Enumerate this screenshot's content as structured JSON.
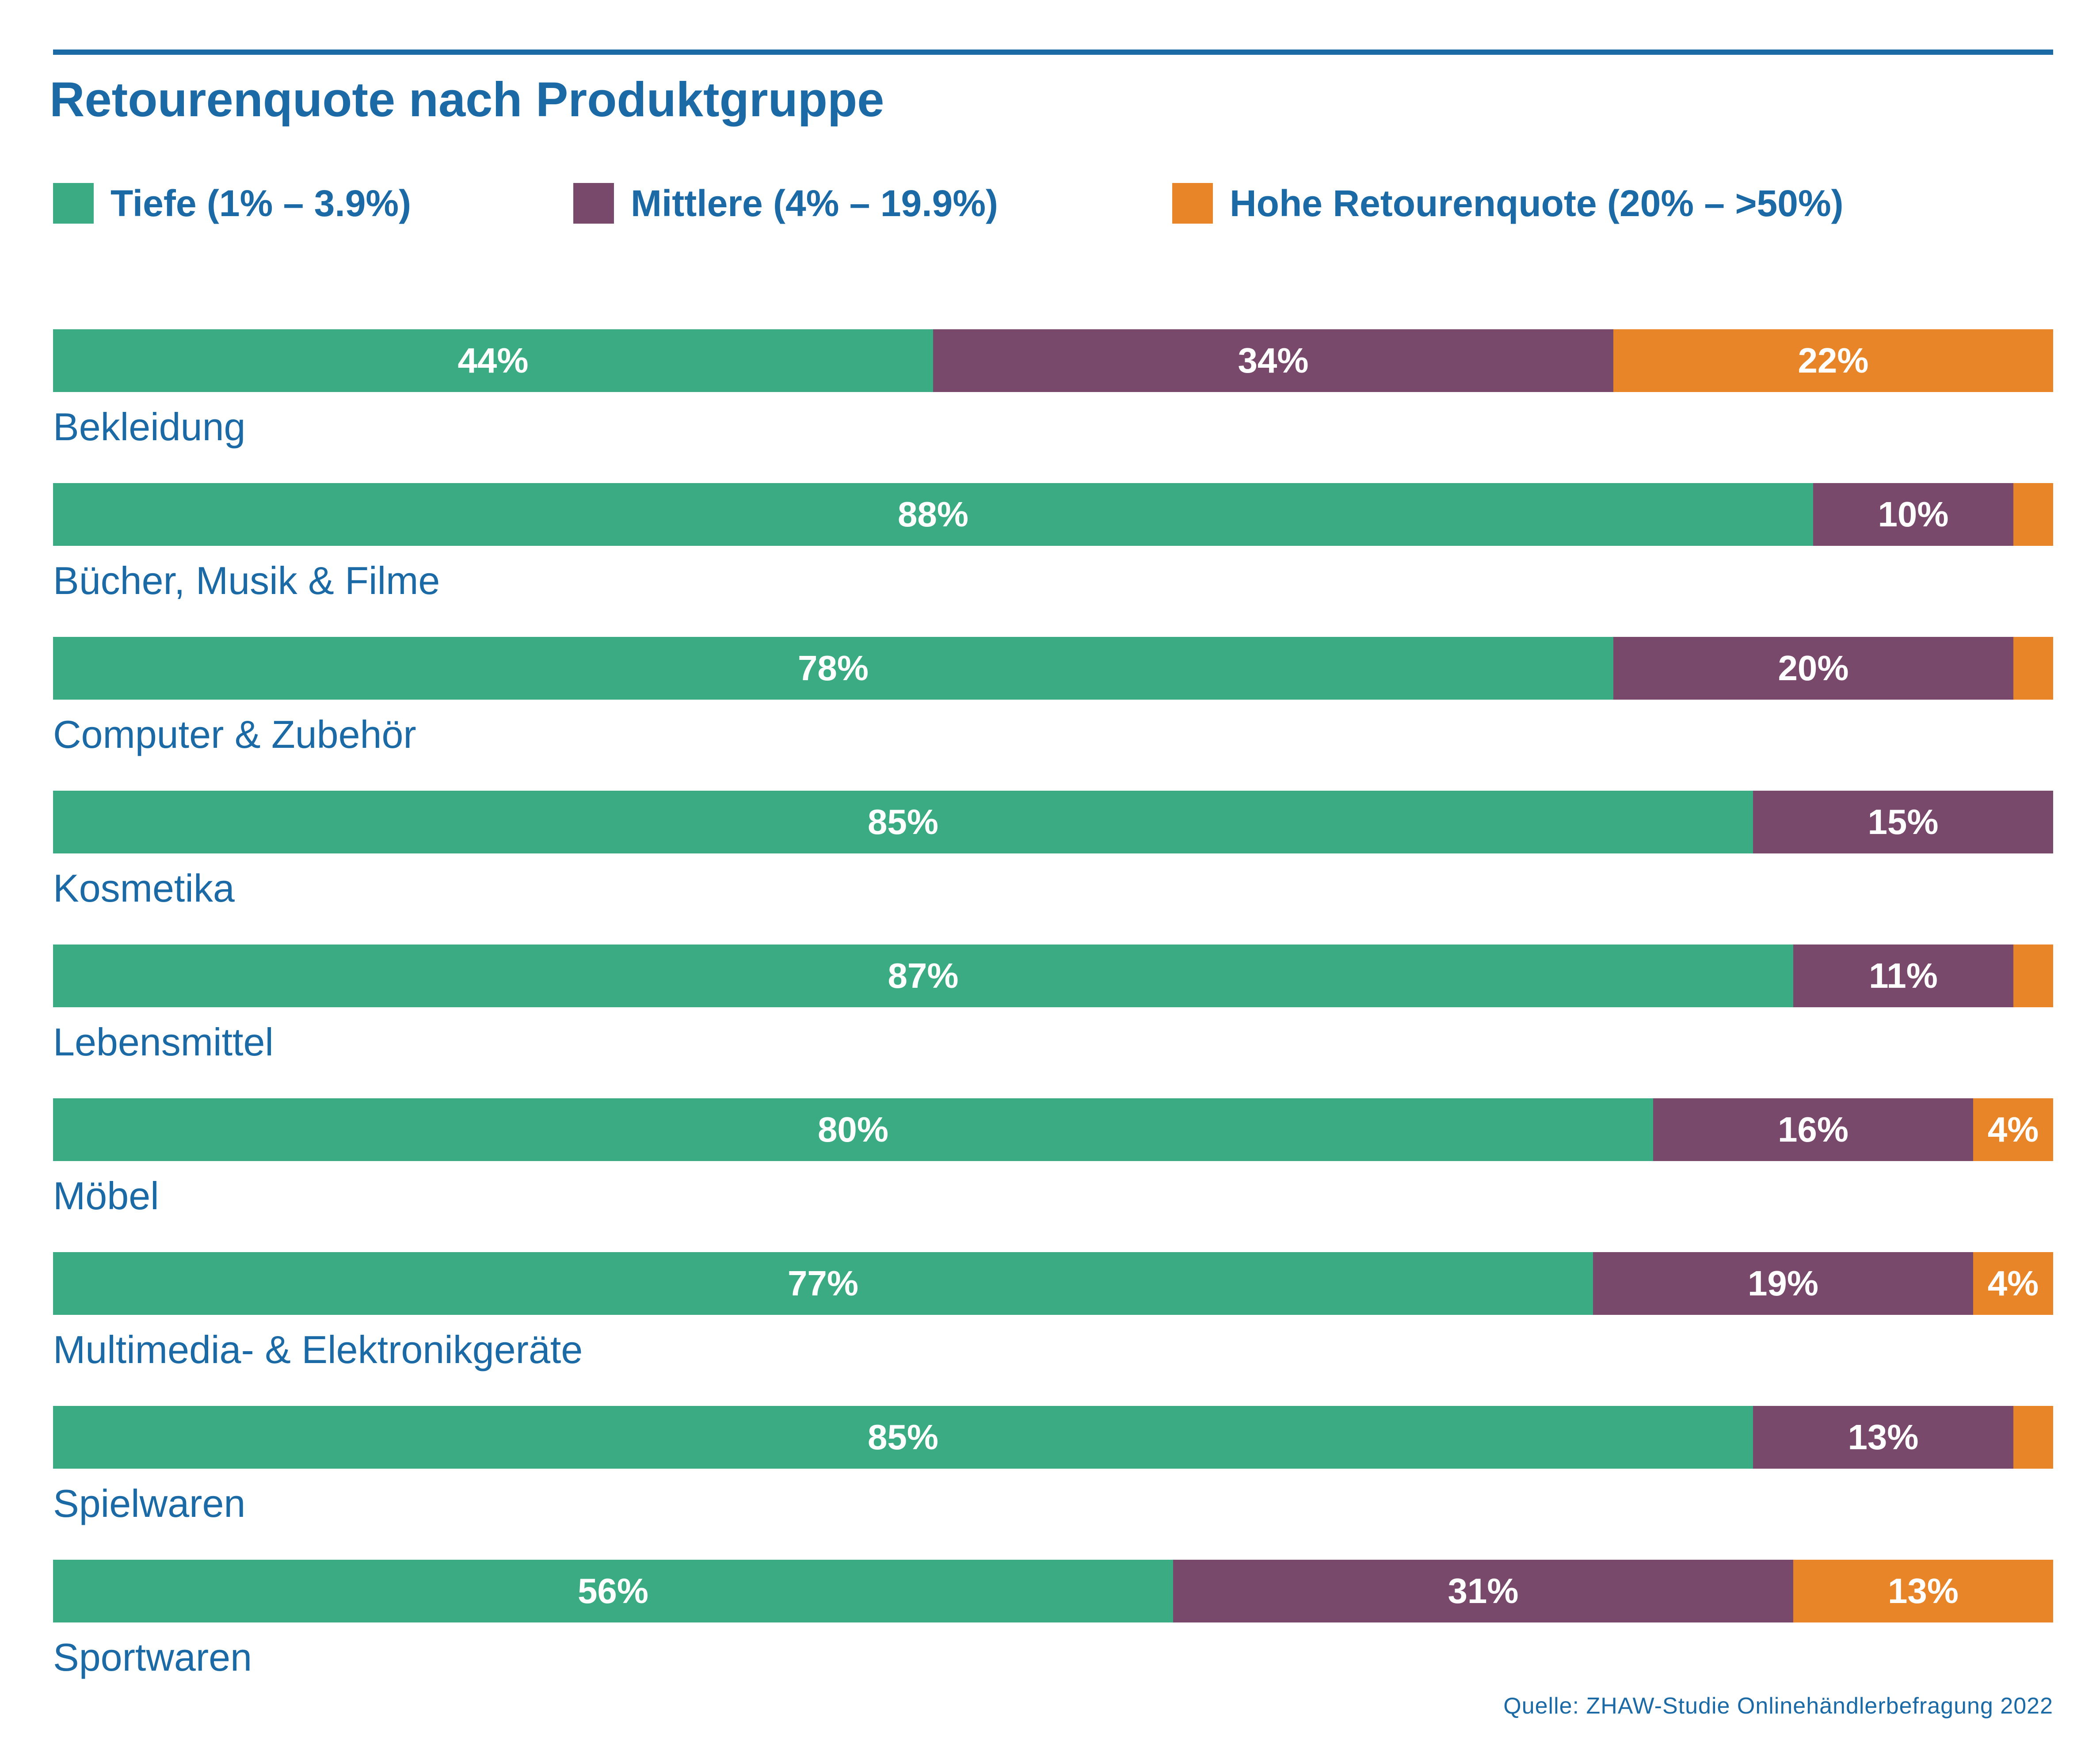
{
  "colors": {
    "title": "#1b6aa5",
    "low": "#3aab82",
    "mid": "#79496c",
    "high": "#e88528"
  },
  "chart_data": {
    "type": "bar",
    "orientation": "horizontal",
    "stacked": true,
    "title": "Retourenquote nach Produktgruppe",
    "legend_placement": "top",
    "grid": false,
    "categories": [
      "Bekleidung",
      "Bücher, Musik & Filme",
      "Computer & Zubehör",
      "Kosmetika",
      "Lebensmittel",
      "Möbel",
      "Multimedia- & Elektronikgeräte",
      "Spielwaren",
      "Sportwaren"
    ],
    "series": [
      {
        "name": "Tiefe (1% – 3.9%)",
        "color": "#3aab82",
        "values": [
          44,
          88,
          78,
          85,
          87,
          80,
          77,
          85,
          56
        ],
        "labels": [
          "44%",
          "88%",
          "78%",
          "85%",
          "87%",
          "80%",
          "77%",
          "85%",
          "56%"
        ]
      },
      {
        "name": "Mittlere (4% – 19.9%)",
        "color": "#79496c",
        "values": [
          34,
          10,
          20,
          15,
          11,
          16,
          19,
          13,
          31
        ],
        "labels": [
          "34%",
          "10%",
          "20%",
          "15%",
          "11%",
          "16%",
          "19%",
          "13%",
          "31%"
        ]
      },
      {
        "name": "Hohe Retourenquote (20% – >50%)",
        "color": "#e88528",
        "values": [
          22,
          2,
          2,
          0,
          2,
          4,
          4,
          2,
          13
        ],
        "labels": [
          "22%",
          "",
          "",
          "",
          "",
          "4%",
          "4%",
          "",
          "13%"
        ]
      }
    ],
    "xlim": [
      0,
      100
    ]
  },
  "source": "Quelle: ZHAW-Studie Onlinehändlerbefragung 2022"
}
